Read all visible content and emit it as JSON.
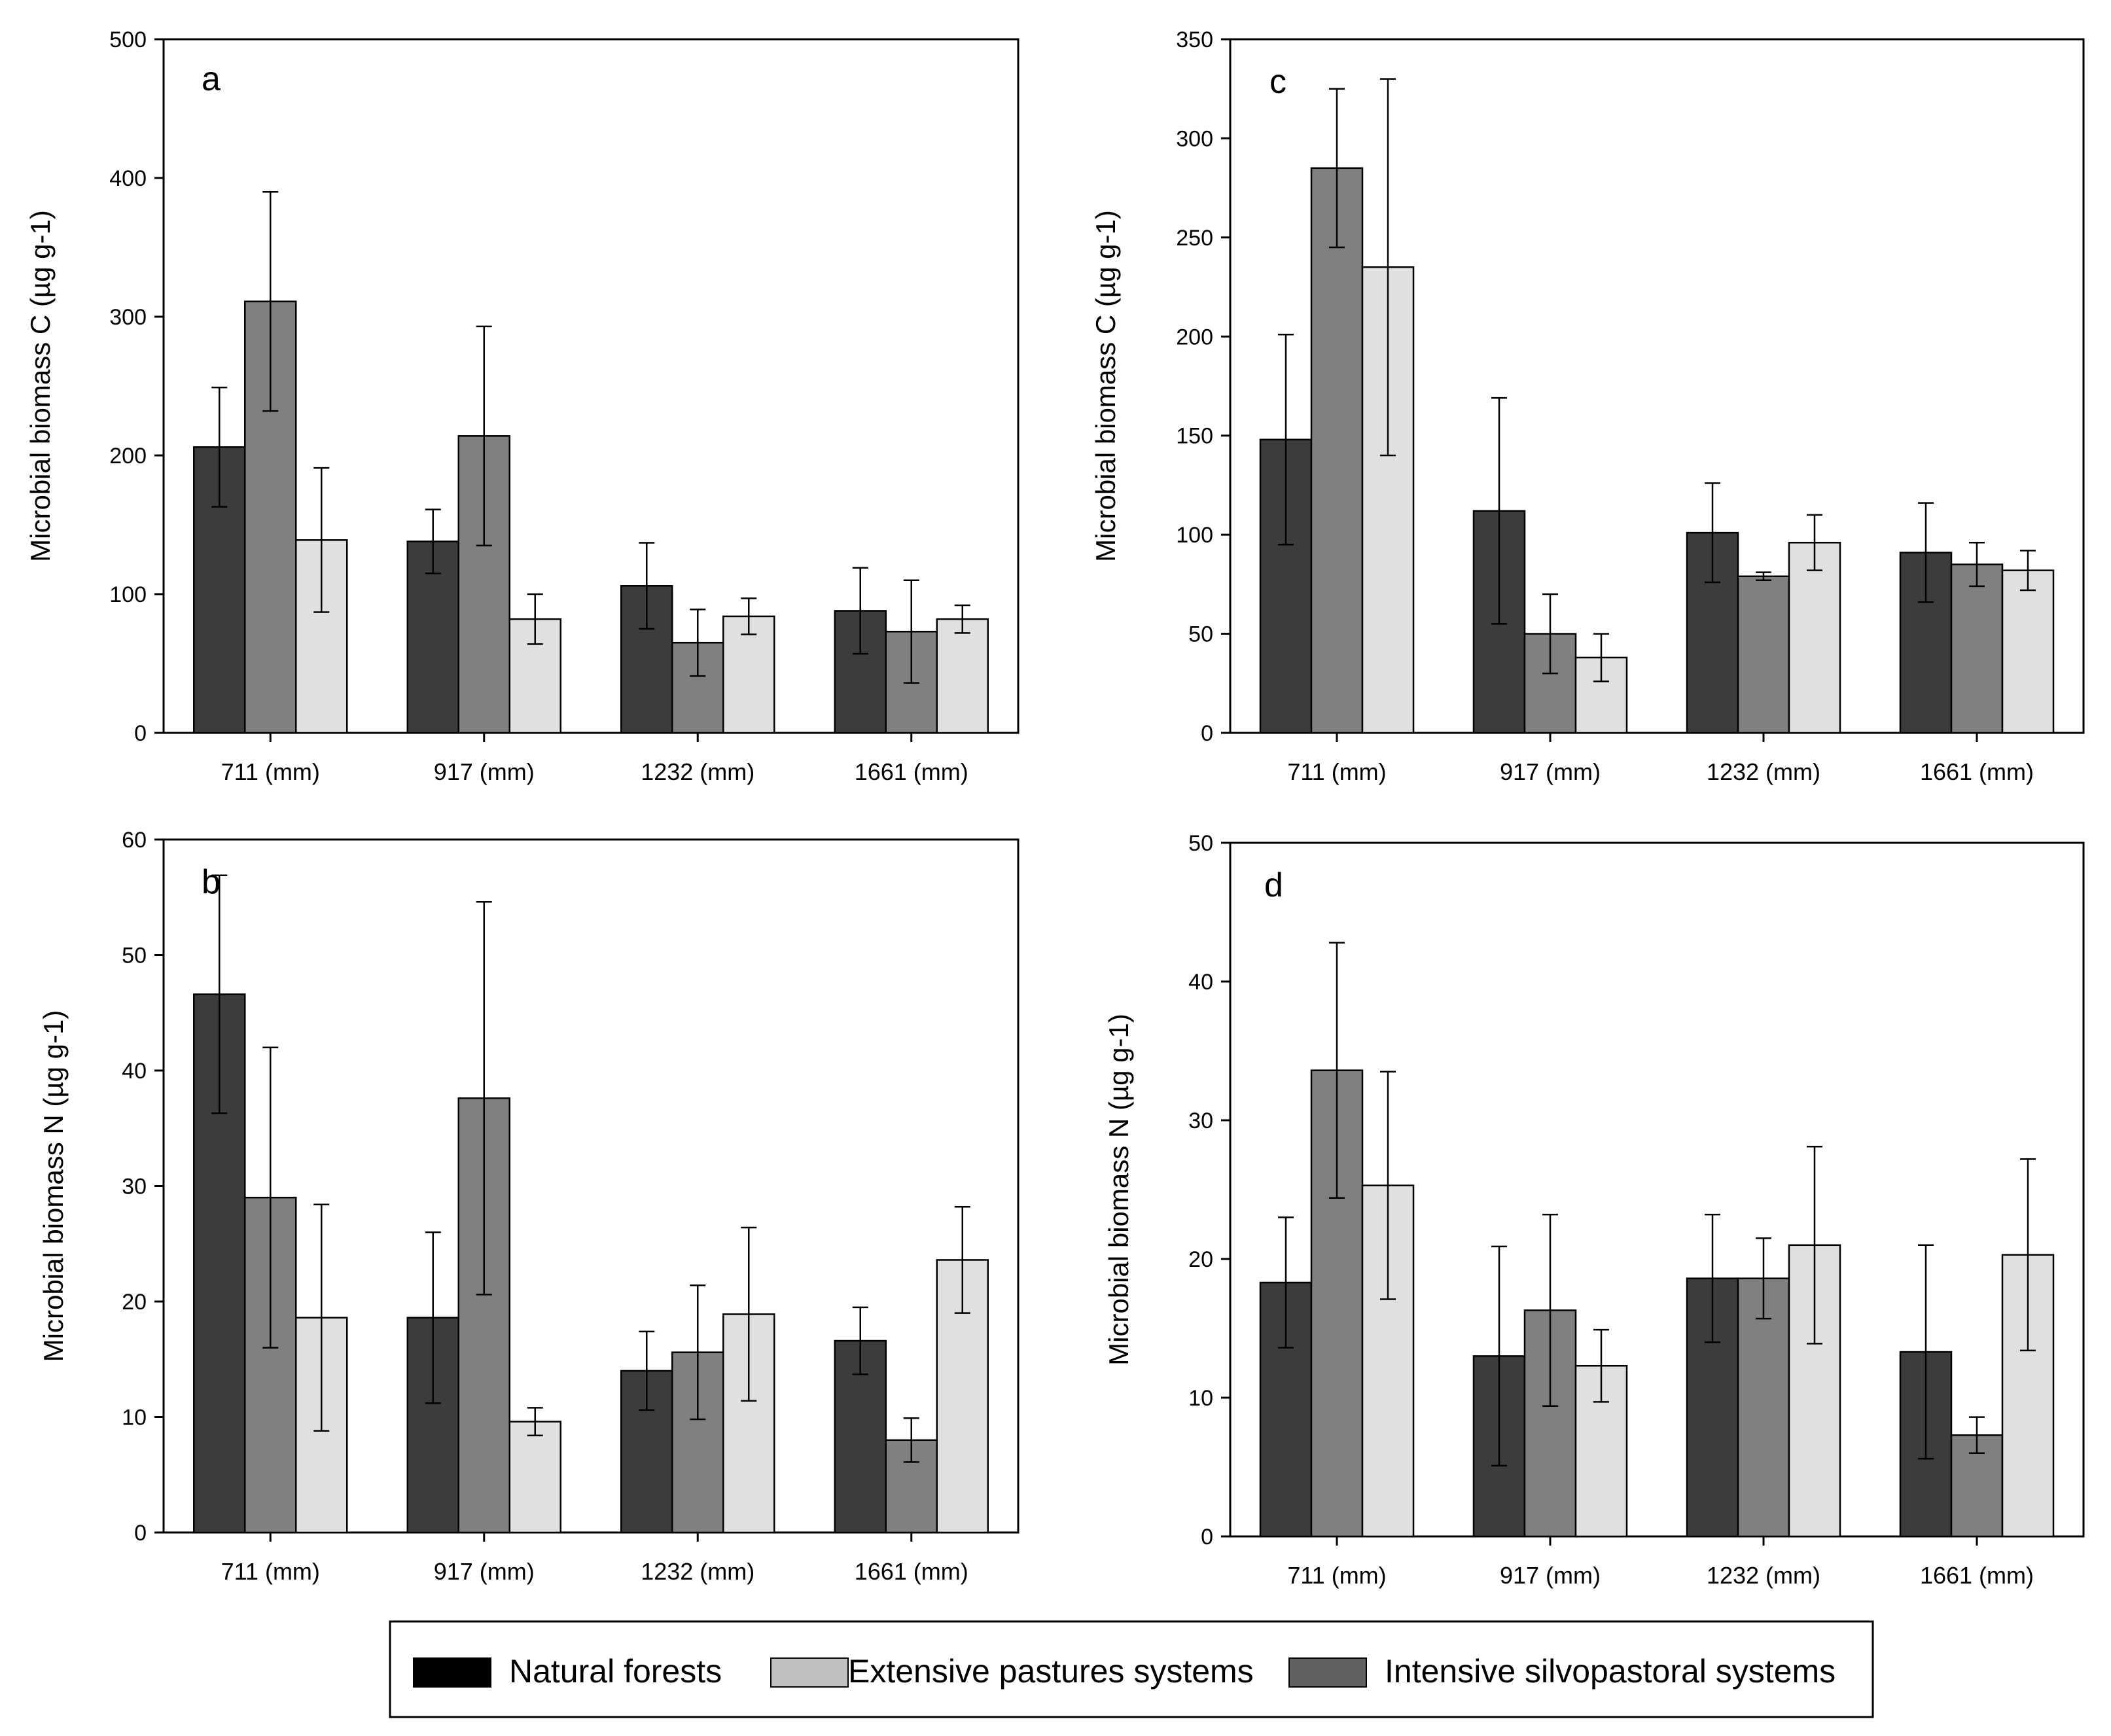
{
  "legend": {
    "items": [
      {
        "label": "Natural forests",
        "color": "#000000"
      },
      {
        "label": "Extensive pastures systems",
        "color": "#c0c0c0"
      },
      {
        "label": "Intensive silvopastoral systems",
        "color": "#606060"
      }
    ]
  },
  "chart_data": [
    {
      "panel": "a",
      "type": "bar",
      "ylabel": "Microbial biomass C (µg g-1)",
      "ylim": [
        0,
        500
      ],
      "yticks": [
        0,
        100,
        200,
        300,
        400,
        500
      ],
      "categories": [
        "711 (mm)",
        "917 (mm)",
        "1232 (mm)",
        "1661 (mm)"
      ],
      "series": [
        {
          "name": "series-1",
          "color": "#3c3c3c",
          "values": [
            206,
            138,
            106,
            88
          ],
          "errors": [
            43,
            23,
            31,
            31
          ]
        },
        {
          "name": "series-2",
          "color": "#808080",
          "values": [
            311,
            214,
            65,
            73
          ],
          "errors": [
            79,
            79,
            24,
            37
          ]
        },
        {
          "name": "series-3",
          "color": "#e0e0e0",
          "values": [
            139,
            82,
            84,
            82
          ],
          "errors": [
            52,
            18,
            13,
            10
          ]
        }
      ]
    },
    {
      "panel": "b",
      "type": "bar",
      "ylabel": "Microbial biomass N (µg g-1)",
      "ylim": [
        0,
        60
      ],
      "yticks": [
        0,
        10,
        20,
        30,
        40,
        50,
        60
      ],
      "categories": [
        "711 (mm)",
        "917 (mm)",
        "1232 (mm)",
        "1661 (mm)"
      ],
      "series": [
        {
          "name": "series-1",
          "color": "#3c3c3c",
          "values": [
            46.6,
            18.6,
            14.0,
            16.6
          ],
          "errors": [
            10.3,
            7.4,
            3.4,
            2.9
          ]
        },
        {
          "name": "series-2",
          "color": "#808080",
          "values": [
            29.0,
            37.6,
            15.6,
            8.0
          ],
          "errors": [
            13.0,
            17.0,
            5.8,
            1.9
          ]
        },
        {
          "name": "series-3",
          "color": "#e0e0e0",
          "values": [
            18.6,
            9.6,
            18.9,
            23.6
          ],
          "errors": [
            9.8,
            1.2,
            7.5,
            4.6
          ]
        }
      ]
    },
    {
      "panel": "c",
      "type": "bar",
      "ylabel": "Microbial biomass C (µg g-1)",
      "ylim": [
        0,
        350
      ],
      "yticks": [
        0,
        50,
        100,
        150,
        200,
        250,
        300,
        350
      ],
      "categories": [
        "711 (mm)",
        "917 (mm)",
        "1232 (mm)",
        "1661 (mm)"
      ],
      "series": [
        {
          "name": "series-1",
          "color": "#3c3c3c",
          "values": [
            148,
            112,
            101,
            91
          ],
          "errors": [
            53,
            57,
            25,
            25
          ]
        },
        {
          "name": "series-2",
          "color": "#808080",
          "values": [
            285,
            50,
            79,
            85
          ],
          "errors": [
            40,
            20,
            2,
            11
          ]
        },
        {
          "name": "series-3",
          "color": "#e0e0e0",
          "values": [
            235,
            38,
            96,
            82
          ],
          "errors": [
            95,
            12,
            14,
            10
          ]
        }
      ]
    },
    {
      "panel": "d",
      "type": "bar",
      "ylabel": "Microbial biomass N (µg g-1)",
      "ylim": [
        0,
        50
      ],
      "yticks": [
        0,
        10,
        20,
        30,
        40,
        50
      ],
      "categories": [
        "711 (mm)",
        "917 (mm)",
        "1232 (mm)",
        "1661 (mm)"
      ],
      "series": [
        {
          "name": "series-1",
          "color": "#3c3c3c",
          "values": [
            18.3,
            13.0,
            18.6,
            13.3
          ],
          "errors": [
            4.7,
            7.9,
            4.6,
            7.7
          ]
        },
        {
          "name": "series-2",
          "color": "#808080",
          "values": [
            33.6,
            16.3,
            18.6,
            7.3
          ],
          "errors": [
            9.2,
            6.9,
            2.9,
            1.3
          ]
        },
        {
          "name": "series-3",
          "color": "#e0e0e0",
          "values": [
            25.3,
            12.3,
            21.0,
            20.3
          ],
          "errors": [
            8.2,
            2.6,
            7.1,
            6.9
          ]
        }
      ]
    }
  ]
}
